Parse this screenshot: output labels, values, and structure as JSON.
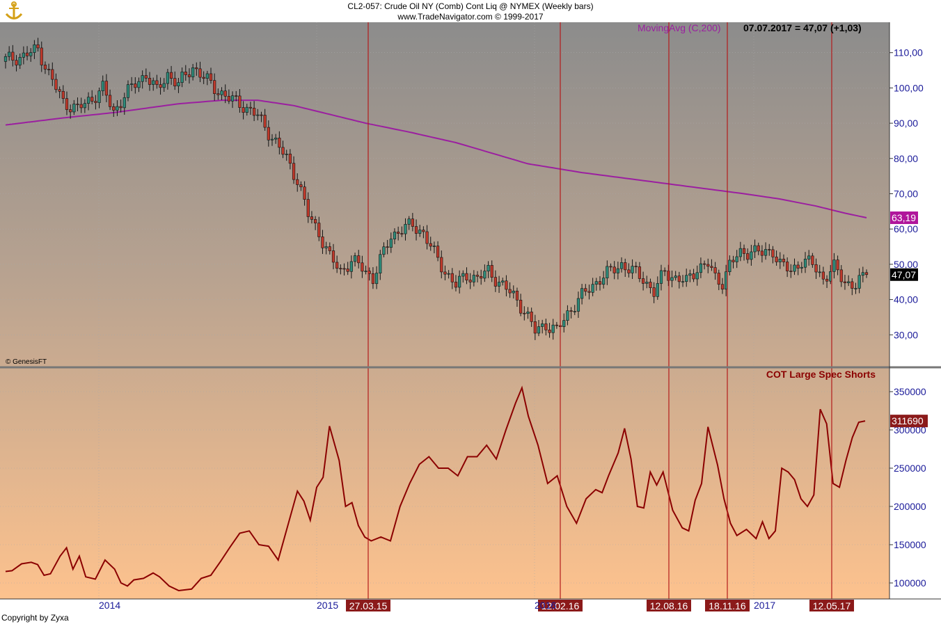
{
  "header": {
    "title": "CL2-057:  Crude Oil NY (Comb) Cont Liq @ NYMEX  (Weekly bars)",
    "source": "www.TradeNavigator.com © 1999-2017"
  },
  "footer": {
    "copyright": "Copyright by Zyxa"
  },
  "chart_data": [
    {
      "type": "candlestick",
      "panel": "price",
      "title": "",
      "interval": "Weekly bars",
      "ylim": [
        22,
        118
      ],
      "y_ticks": [
        "110,00",
        "100,00",
        "90,00",
        "80,00",
        "70,00",
        "60,00",
        "50,00",
        "40,00",
        "30,00"
      ],
      "x_ticks": [
        "2014",
        "2015",
        "2016",
        "2017"
      ],
      "grid": true,
      "watermark": "© GenesisFT",
      "last_close_label": "47,07",
      "indicator_header": {
        "name": "MovingAvg (C,200)",
        "value_text": "07.07.2017 = 47,07 (+1,03)"
      },
      "moving_average": {
        "name": "MovingAvg (C,200)",
        "last_value_label": "63,19",
        "anchors": [
          [
            0,
            89.5
          ],
          [
            16,
            91.5
          ],
          [
            30,
            93.0
          ],
          [
            48,
            95.5
          ],
          [
            60,
            96.5
          ],
          [
            70,
            96.5
          ],
          [
            80,
            95.0
          ],
          [
            90,
            92.5
          ],
          [
            100,
            90.0
          ],
          [
            112,
            87.5
          ],
          [
            125,
            84.5
          ],
          [
            135,
            81.5
          ],
          [
            145,
            78.5
          ],
          [
            160,
            76.0
          ],
          [
            175,
            74.0
          ],
          [
            190,
            72.0
          ],
          [
            205,
            70.0
          ],
          [
            215,
            68.5
          ],
          [
            225,
            66.5
          ],
          [
            233,
            64.5
          ],
          [
            239,
            63.19
          ]
        ]
      },
      "close_anchors": [
        [
          0,
          108
        ],
        [
          5,
          109
        ],
        [
          9,
          111
        ],
        [
          12,
          104
        ],
        [
          16,
          96
        ],
        [
          20,
          94
        ],
        [
          24,
          97
        ],
        [
          27,
          100
        ],
        [
          30,
          93
        ],
        [
          33,
          98
        ],
        [
          36,
          101
        ],
        [
          39,
          104
        ],
        [
          42,
          99
        ],
        [
          45,
          104
        ],
        [
          48,
          101
        ],
        [
          52,
          106
        ],
        [
          55,
          103
        ],
        [
          58,
          100
        ],
        [
          62,
          97
        ],
        [
          66,
          95
        ],
        [
          70,
          92
        ],
        [
          74,
          86
        ],
        [
          78,
          80
        ],
        [
          81,
          74
        ],
        [
          84,
          64
        ],
        [
          87,
          59
        ],
        [
          90,
          52
        ],
        [
          93,
          48
        ],
        [
          96,
          51
        ],
        [
          99,
          49
        ],
        [
          102,
          46
        ],
        [
          104,
          51
        ],
        [
          107,
          58
        ],
        [
          110,
          60
        ],
        [
          113,
          61
        ],
        [
          116,
          59
        ],
        [
          119,
          53
        ],
        [
          122,
          48
        ],
        [
          125,
          44
        ],
        [
          128,
          47
        ],
        [
          131,
          46
        ],
        [
          134,
          48
        ],
        [
          137,
          45
        ],
        [
          141,
          41
        ],
        [
          144,
          37
        ],
        [
          147,
          31
        ],
        [
          150,
          33
        ],
        [
          153,
          31
        ],
        [
          156,
          36
        ],
        [
          159,
          40
        ],
        [
          162,
          43
        ],
        [
          165,
          46
        ],
        [
          168,
          48
        ],
        [
          171,
          50
        ],
        [
          174,
          48
        ],
        [
          177,
          46
        ],
        [
          180,
          42
        ],
        [
          183,
          48
        ],
        [
          186,
          46
        ],
        [
          189,
          45
        ],
        [
          192,
          49
        ],
        [
          195,
          50
        ],
        [
          197,
          46
        ],
        [
          199,
          45
        ],
        [
          201,
          50
        ],
        [
          204,
          53
        ],
        [
          207,
          54
        ],
        [
          210,
          53
        ],
        [
          213,
          54
        ],
        [
          215,
          50
        ],
        [
          218,
          48
        ],
        [
          221,
          51
        ],
        [
          224,
          50
        ],
        [
          227,
          46
        ],
        [
          230,
          49
        ],
        [
          233,
          45
        ],
        [
          236,
          44
        ],
        [
          239,
          47.07
        ]
      ]
    },
    {
      "type": "line",
      "panel": "cot",
      "title": "COT Large Spec Shorts",
      "ylim": [
        80000,
        372000
      ],
      "y_ticks": [
        "350000",
        "300000",
        "250000",
        "200000",
        "150000",
        "100000"
      ],
      "last_value_label": "311690",
      "grid": true,
      "line_color": "#8b0000",
      "points": [
        [
          0,
          115000
        ],
        [
          2,
          116000
        ],
        [
          5,
          125000
        ],
        [
          8,
          127000
        ],
        [
          10,
          124000
        ],
        [
          12,
          110000
        ],
        [
          14,
          112000
        ],
        [
          17,
          135000
        ],
        [
          19,
          146000
        ],
        [
          21,
          118000
        ],
        [
          23,
          135000
        ],
        [
          25,
          108000
        ],
        [
          28,
          105000
        ],
        [
          31,
          130000
        ],
        [
          34,
          118000
        ],
        [
          36,
          100000
        ],
        [
          38,
          96000
        ],
        [
          40,
          104000
        ],
        [
          43,
          106000
        ],
        [
          46,
          113000
        ],
        [
          48,
          108000
        ],
        [
          51,
          96000
        ],
        [
          54,
          90000
        ],
        [
          58,
          92000
        ],
        [
          61,
          106000
        ],
        [
          64,
          110000
        ],
        [
          67,
          128000
        ],
        [
          70,
          147000
        ],
        [
          73,
          165000
        ],
        [
          76,
          168000
        ],
        [
          79,
          150000
        ],
        [
          82,
          148000
        ],
        [
          85,
          130000
        ],
        [
          88,
          175000
        ],
        [
          91,
          220000
        ],
        [
          93,
          207000
        ],
        [
          95,
          182000
        ],
        [
          97,
          225000
        ],
        [
          99,
          238000
        ],
        [
          101,
          305000
        ],
        [
          104,
          260000
        ],
        [
          106,
          200000
        ],
        [
          108,
          205000
        ],
        [
          110,
          175000
        ],
        [
          112,
          160000
        ],
        [
          114,
          155000
        ],
        [
          117,
          160000
        ],
        [
          120,
          155000
        ],
        [
          123,
          200000
        ],
        [
          126,
          230000
        ],
        [
          129,
          255000
        ],
        [
          132,
          265000
        ],
        [
          135,
          250000
        ],
        [
          138,
          250000
        ],
        [
          141,
          240000
        ],
        [
          144,
          265000
        ],
        [
          147,
          265000
        ],
        [
          150,
          280000
        ],
        [
          153,
          262000
        ],
        [
          156,
          300000
        ],
        [
          159,
          335000
        ],
        [
          161,
          355000
        ],
        [
          163,
          318000
        ],
        [
          166,
          280000
        ],
        [
          169,
          230000
        ],
        [
          172,
          240000
        ],
        [
          175,
          200000
        ],
        [
          178,
          178000
        ],
        [
          181,
          210000
        ],
        [
          184,
          222000
        ],
        [
          186,
          218000
        ],
        [
          188,
          240000
        ],
        [
          191,
          270000
        ],
        [
          193,
          302000
        ],
        [
          195,
          262000
        ],
        [
          197,
          200000
        ],
        [
          199,
          198000
        ],
        [
          201,
          245000
        ],
        [
          203,
          228000
        ],
        [
          205,
          245000
        ],
        [
          208,
          195000
        ],
        [
          211,
          172000
        ],
        [
          213,
          168000
        ],
        [
          215,
          208000
        ],
        [
          217,
          230000
        ],
        [
          219,
          304000
        ],
        [
          222,
          254000
        ],
        [
          224,
          210000
        ],
        [
          226,
          178000
        ],
        [
          228,
          162000
        ],
        [
          231,
          170000
        ],
        [
          234,
          158000
        ],
        [
          236,
          180000
        ],
        [
          238,
          158000
        ],
        [
          240,
          168000
        ],
        [
          242,
          250000
        ],
        [
          244,
          245000
        ],
        [
          246,
          235000
        ],
        [
          248,
          210000
        ],
        [
          250,
          200000
        ],
        [
          252,
          215000
        ],
        [
          254,
          327000
        ],
        [
          256,
          308000
        ],
        [
          258,
          230000
        ],
        [
          260,
          225000
        ],
        [
          262,
          260000
        ],
        [
          264,
          290000
        ],
        [
          266,
          310000
        ],
        [
          268,
          311690
        ]
      ]
    }
  ],
  "event_markers": [
    "27.03.15",
    "12.02.16",
    "12.08.16",
    "18.11.16",
    "12.05.17"
  ],
  "colors": {
    "up_candle": "#2e8b7a",
    "down_candle": "#c0392b",
    "moving_average": "#9b1fa0",
    "cot_line": "#8b0000",
    "event_line": "#b31b1b",
    "axis_text": "#1a1a99",
    "marker_bg": "#8b1a1a"
  }
}
